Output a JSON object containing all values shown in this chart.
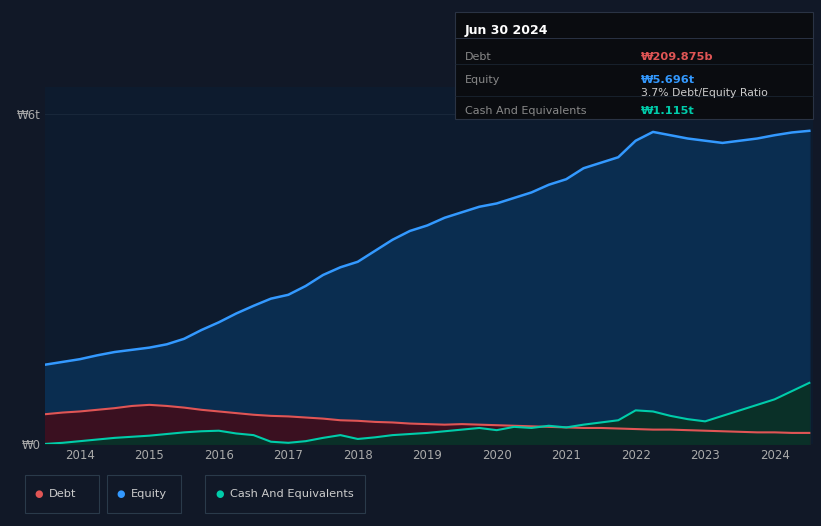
{
  "background_color": "#111827",
  "plot_bg_color": "#0d1b2e",
  "x_ticks": [
    2014,
    2015,
    2016,
    2017,
    2018,
    2019,
    2020,
    2021,
    2022,
    2023,
    2024
  ],
  "debt_color": "#e05555",
  "equity_color": "#3399ff",
  "cash_color": "#00ccaa",
  "equity_fill_color": "#0a2d50",
  "debt_fill_color": "#3a1020",
  "cash_fill_color": "#0a3028",
  "tooltip": {
    "date": "Jun 30 2024",
    "debt_label": "Debt",
    "debt_value": "₩209.875b",
    "equity_label": "Equity",
    "equity_value": "₩5.696t",
    "ratio_value": "3.7% Debt/Equity Ratio",
    "cash_label": "Cash And Equivalents",
    "cash_value": "₩1.115t"
  },
  "legend": [
    "Debt",
    "Equity",
    "Cash And Equivalents"
  ],
  "years": [
    2013.5,
    2013.75,
    2014.0,
    2014.25,
    2014.5,
    2014.75,
    2015.0,
    2015.25,
    2015.5,
    2015.75,
    2016.0,
    2016.25,
    2016.5,
    2016.75,
    2017.0,
    2017.25,
    2017.5,
    2017.75,
    2018.0,
    2018.25,
    2018.5,
    2018.75,
    2019.0,
    2019.25,
    2019.5,
    2019.75,
    2020.0,
    2020.25,
    2020.5,
    2020.75,
    2021.0,
    2021.25,
    2021.5,
    2021.75,
    2022.0,
    2022.25,
    2022.5,
    2022.75,
    2023.0,
    2023.25,
    2023.5,
    2023.75,
    2024.0,
    2024.25,
    2024.5
  ],
  "equity": [
    1.45,
    1.5,
    1.55,
    1.62,
    1.68,
    1.72,
    1.76,
    1.82,
    1.92,
    2.08,
    2.22,
    2.38,
    2.52,
    2.65,
    2.72,
    2.88,
    3.08,
    3.22,
    3.32,
    3.52,
    3.72,
    3.88,
    3.98,
    4.12,
    4.22,
    4.32,
    4.38,
    4.48,
    4.58,
    4.72,
    4.82,
    5.02,
    5.12,
    5.22,
    5.52,
    5.68,
    5.62,
    5.56,
    5.52,
    5.48,
    5.52,
    5.56,
    5.62,
    5.67,
    5.7
  ],
  "debt": [
    0.55,
    0.58,
    0.6,
    0.63,
    0.66,
    0.7,
    0.72,
    0.7,
    0.67,
    0.63,
    0.6,
    0.57,
    0.54,
    0.52,
    0.51,
    0.49,
    0.47,
    0.44,
    0.43,
    0.41,
    0.4,
    0.38,
    0.37,
    0.36,
    0.37,
    0.36,
    0.35,
    0.34,
    0.33,
    0.32,
    0.31,
    0.3,
    0.3,
    0.29,
    0.28,
    0.27,
    0.27,
    0.26,
    0.25,
    0.24,
    0.23,
    0.22,
    0.22,
    0.21,
    0.21
  ],
  "cash": [
    0.01,
    0.03,
    0.06,
    0.09,
    0.12,
    0.14,
    0.16,
    0.19,
    0.22,
    0.24,
    0.25,
    0.2,
    0.17,
    0.05,
    0.03,
    0.06,
    0.12,
    0.17,
    0.1,
    0.13,
    0.17,
    0.19,
    0.21,
    0.24,
    0.27,
    0.3,
    0.26,
    0.32,
    0.3,
    0.34,
    0.31,
    0.36,
    0.4,
    0.44,
    0.62,
    0.6,
    0.52,
    0.46,
    0.42,
    0.52,
    0.62,
    0.72,
    0.82,
    0.97,
    1.12
  ],
  "ylim": [
    0,
    6.5
  ],
  "ytick_vals": [
    0,
    6
  ],
  "ytick_labels": [
    "₩0",
    "₩6t"
  ],
  "grid_color": "#1e2d40",
  "grid_alpha": 0.7,
  "legend_bg": "#111827",
  "legend_edge": "#2a3a4a"
}
